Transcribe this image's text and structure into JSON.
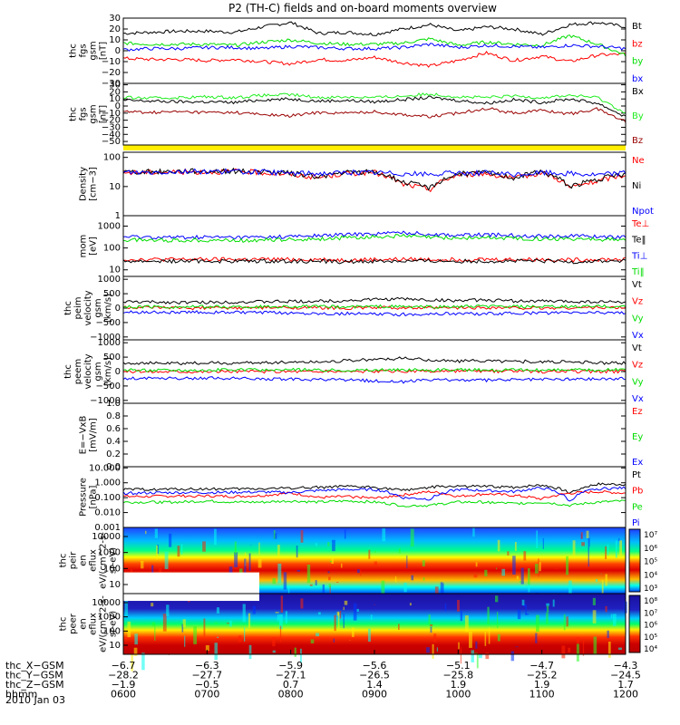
{
  "title": "P2 (TH-C) fields and on-board moments overview",
  "date_label": "2010 Jan 03",
  "colors": {
    "black": "#000000",
    "red": "#ff0000",
    "green": "#00dd00",
    "blue": "#0000ff",
    "darkred": "#990000",
    "yellow": "#ffee00",
    "lime": "#22ee22"
  },
  "chart_data": [
    {
      "type": "line",
      "ylabel": [
        "thc",
        "fgs",
        "gsm",
        "[nT]"
      ],
      "yticks": [
        "30",
        "20",
        "10",
        "0",
        "−10",
        "−20",
        "−30"
      ],
      "tick_values": [
        30,
        20,
        10,
        0,
        -10,
        -20,
        -30
      ],
      "ylim": [
        -30,
        30
      ],
      "series": [
        {
          "name": "Bt",
          "color": "#000000",
          "values": [
            16,
            17,
            18,
            18,
            17,
            22,
            26,
            16,
            17,
            15,
            20,
            24,
            18,
            22,
            20,
            15,
            24,
            26,
            22
          ]
        },
        {
          "name": "bz",
          "color": "#ff0000",
          "values": [
            -7,
            -8,
            -8,
            -9,
            -8,
            -10,
            -12,
            -8,
            -9,
            -6,
            -11,
            -14,
            -9,
            -2,
            -9,
            -5,
            -10,
            -4,
            -3
          ]
        },
        {
          "name": "by",
          "color": "#00dd00",
          "values": [
            7,
            6,
            6,
            6,
            5,
            8,
            10,
            7,
            6,
            6,
            7,
            11,
            5,
            8,
            6,
            5,
            14,
            6,
            -4
          ]
        },
        {
          "name": "bx",
          "color": "#0000ff",
          "values": [
            1,
            2,
            2,
            3,
            3,
            2,
            4,
            3,
            2,
            2,
            3,
            6,
            3,
            5,
            4,
            3,
            5,
            4,
            2
          ]
        }
      ]
    },
    {
      "type": "line",
      "ylabel": [
        "thc",
        "fgs",
        "gsm",
        "[nT]"
      ],
      "yticks": [
        "30",
        "20",
        "10",
        "0",
        "−10",
        "−20",
        "−30",
        "−40",
        "−50"
      ],
      "tick_values": [
        30,
        20,
        10,
        0,
        -10,
        -20,
        -30,
        -40,
        -50
      ],
      "ylim": [
        -55,
        32
      ],
      "series": [
        {
          "name": "Bx",
          "color": "#000000",
          "values": [
            8,
            7,
            6,
            6,
            5,
            9,
            10,
            7,
            8,
            6,
            9,
            12,
            8,
            4,
            9,
            5,
            10,
            4,
            -15
          ]
        },
        {
          "name": "By",
          "color": "#22ee22",
          "values": [
            12,
            11,
            12,
            13,
            12,
            15,
            16,
            12,
            13,
            12,
            14,
            17,
            13,
            12,
            14,
            12,
            15,
            12,
            -10
          ]
        },
        {
          "name": "Bz",
          "color": "#990000",
          "values": [
            -8,
            -9,
            -8,
            -9,
            -9,
            -12,
            -14,
            -9,
            -10,
            -8,
            -12,
            -15,
            -10,
            -3,
            -10,
            -6,
            -11,
            -4,
            -22
          ]
        }
      ]
    },
    {
      "type": "line",
      "log": true,
      "ylabel": [
        "Density",
        "[cm−3]"
      ],
      "yticks": [
        "100",
        "10",
        "1"
      ],
      "tick_values": [
        100,
        10,
        1
      ],
      "ylim": [
        1,
        150
      ],
      "series": [
        {
          "name": "Ne",
          "color": "#ff0000",
          "values": [
            30,
            31,
            32,
            32,
            33,
            30,
            26,
            20,
            28,
            30,
            12,
            8,
            25,
            28,
            18,
            30,
            9,
            15,
            25
          ]
        },
        {
          "name": "Ni",
          "color": "#000000",
          "values": [
            32,
            32,
            34,
            34,
            34,
            32,
            28,
            22,
            30,
            32,
            14,
            9,
            27,
            30,
            20,
            32,
            10,
            17,
            27
          ]
        },
        {
          "name": "Npot",
          "color": "#0000ff",
          "values": [
            31,
            31,
            33,
            33,
            33,
            31,
            29,
            28,
            30,
            30,
            28,
            26,
            29,
            30,
            25,
            30,
            28,
            25,
            30
          ]
        }
      ]
    },
    {
      "type": "line",
      "log": true,
      "ylabel": [
        "mom",
        "[eV]"
      ],
      "yticks": [
        "1000",
        "100",
        "10"
      ],
      "tick_values": [
        1000,
        100,
        10
      ],
      "ylim": [
        5,
        3000
      ],
      "series": [
        {
          "name": "Te⊥",
          "color": "#ff0000",
          "values": [
            30,
            30,
            30,
            30,
            30,
            30,
            30,
            30,
            28,
            30,
            30,
            30,
            30,
            30,
            30,
            30,
            28,
            30,
            30
          ]
        },
        {
          "name": "Te‖",
          "color": "#000000",
          "values": [
            25,
            25,
            25,
            25,
            25,
            25,
            25,
            25,
            23,
            25,
            25,
            25,
            25,
            25,
            25,
            25,
            23,
            25,
            25
          ]
        },
        {
          "name": "Ti⊥",
          "color": "#0000ff",
          "values": [
            320,
            310,
            300,
            310,
            300,
            310,
            330,
            360,
            400,
            450,
            500,
            420,
            380,
            400,
            380,
            350,
            360,
            330,
            320
          ]
        },
        {
          "name": "Ti‖",
          "color": "#00dd00",
          "values": [
            230,
            230,
            220,
            230,
            220,
            230,
            240,
            260,
            290,
            320,
            350,
            300,
            280,
            290,
            280,
            260,
            270,
            250,
            240
          ]
        }
      ]
    },
    {
      "type": "line",
      "ylabel": [
        "thc",
        "peim",
        "velocity",
        "gsm",
        "[km/s]"
      ],
      "yticks": [
        "1000",
        "500",
        "0",
        "−500",
        "−1000"
      ],
      "tick_values": [
        1000,
        500,
        0,
        -500,
        -1000
      ],
      "ylim": [
        -1100,
        1100
      ],
      "series": [
        {
          "name": "Vt",
          "color": "#000000",
          "values": [
            220,
            210,
            200,
            200,
            210,
            220,
            230,
            240,
            260,
            300,
            320,
            280,
            260,
            280,
            250,
            240,
            230,
            220,
            210
          ]
        },
        {
          "name": "Vz",
          "color": "#ff0000",
          "values": [
            20,
            10,
            0,
            10,
            0,
            10,
            20,
            10,
            0,
            20,
            10,
            0,
            10,
            20,
            10,
            0,
            10,
            20,
            10
          ]
        },
        {
          "name": "Vy",
          "color": "#00dd00",
          "values": [
            40,
            50,
            40,
            50,
            40,
            50,
            60,
            50,
            40,
            60,
            50,
            40,
            50,
            60,
            50,
            40,
            50,
            60,
            50
          ]
        },
        {
          "name": "Vx",
          "color": "#0000ff",
          "values": [
            -150,
            -140,
            -150,
            -140,
            -150,
            -160,
            -170,
            -180,
            -190,
            -210,
            -220,
            -200,
            -190,
            -200,
            -180,
            -170,
            -160,
            -150,
            -150
          ]
        }
      ]
    },
    {
      "type": "line",
      "ylabel": [
        "thc",
        "peem",
        "velocity",
        "gsm",
        "[km/s]"
      ],
      "yticks": [
        "1000",
        "500",
        "0",
        "−500",
        "−1000"
      ],
      "tick_values": [
        1000,
        500,
        0,
        -500,
        -1000
      ],
      "ylim": [
        -1100,
        1100
      ],
      "series": [
        {
          "name": "Vt",
          "color": "#000000",
          "values": [
            300,
            290,
            280,
            300,
            290,
            310,
            330,
            340,
            380,
            420,
            460,
            400,
            360,
            380,
            350,
            340,
            330,
            300,
            290
          ]
        },
        {
          "name": "Vz",
          "color": "#ff0000",
          "values": [
            10,
            0,
            10,
            0,
            10,
            0,
            10,
            0,
            10,
            0,
            10,
            0,
            10,
            0,
            10,
            0,
            10,
            0,
            10
          ]
        },
        {
          "name": "Vy",
          "color": "#00dd00",
          "values": [
            60,
            50,
            60,
            50,
            60,
            50,
            60,
            50,
            60,
            50,
            60,
            50,
            60,
            50,
            60,
            50,
            60,
            50,
            60
          ]
        },
        {
          "name": "Vx",
          "color": "#0000ff",
          "values": [
            -240,
            -230,
            -240,
            -230,
            -240,
            -250,
            -270,
            -280,
            -300,
            -320,
            -350,
            -300,
            -290,
            -300,
            -280,
            -270,
            -260,
            -250,
            -240
          ]
        }
      ]
    },
    {
      "type": "line",
      "ylabel": [
        "E=−VxB",
        "[mV/m]"
      ],
      "yticks": [
        "1.0",
        "0.8",
        "0.6",
        "0.4",
        "0.2",
        "0.0"
      ],
      "tick_values": [
        1.0,
        0.8,
        0.6,
        0.4,
        0.2,
        0.0
      ],
      "ylim": [
        0,
        1
      ],
      "series": [
        {
          "name": "Ez",
          "color": "#ff0000",
          "values": []
        },
        {
          "name": "Ey",
          "color": "#00dd00",
          "values": []
        },
        {
          "name": "Ex",
          "color": "#0000ff",
          "values": []
        }
      ]
    },
    {
      "type": "line",
      "log": true,
      "ylabel": [
        "Pressure",
        "[nPa]"
      ],
      "yticks": [
        "10.000",
        "1.000",
        "0.100",
        "0.010",
        "0.001"
      ],
      "tick_values": [
        10,
        1,
        0.1,
        0.01,
        0.001
      ],
      "ylim": [
        0.001,
        12
      ],
      "series": [
        {
          "name": "Pt",
          "color": "#000000",
          "values": [
            0.35,
            0.36,
            0.37,
            0.38,
            0.38,
            0.4,
            0.45,
            0.5,
            0.55,
            0.5,
            0.3,
            0.5,
            0.6,
            0.55,
            0.5,
            0.7,
            0.2,
            0.8,
            0.8
          ]
        },
        {
          "name": "Pb",
          "color": "#ff0000",
          "values": [
            0.12,
            0.12,
            0.13,
            0.13,
            0.12,
            0.14,
            0.2,
            0.1,
            0.12,
            0.09,
            0.15,
            0.25,
            0.12,
            0.18,
            0.14,
            0.08,
            0.2,
            0.25,
            0.2
          ]
        },
        {
          "name": "Pe",
          "color": "#00dd00",
          "values": [
            0.05,
            0.05,
            0.05,
            0.06,
            0.05,
            0.05,
            0.06,
            0.05,
            0.06,
            0.05,
            0.03,
            0.03,
            0.05,
            0.05,
            0.04,
            0.05,
            0.03,
            0.05,
            0.06
          ]
        },
        {
          "name": "Pi",
          "color": "#0000ff",
          "values": [
            0.2,
            0.21,
            0.22,
            0.22,
            0.23,
            0.24,
            0.22,
            0.3,
            0.35,
            0.35,
            0.1,
            0.08,
            0.35,
            0.3,
            0.25,
            0.45,
            0.05,
            0.4,
            0.45
          ]
        }
      ]
    },
    {
      "type": "heatmap",
      "ylabel": [
        "thc",
        "peir",
        "en",
        "eflux",
        "eV/(cm^2-s-",
        "sr-eV)"
      ],
      "yticks": [
        "10000",
        "1000",
        "100",
        "10"
      ],
      "tick_values": [
        10000,
        1000,
        100,
        10
      ],
      "colorbar_ticks": [
        "10⁷",
        "10⁶",
        "10⁵",
        "10⁴",
        "10³"
      ]
    },
    {
      "type": "heatmap",
      "ylabel": [
        "thc",
        "peer",
        "en",
        "eflux",
        "eV/(cm^2-s-",
        "sr-eV)"
      ],
      "yticks": [
        "10000",
        "1000",
        "100",
        "10"
      ],
      "tick_values": [
        10000,
        1000,
        100,
        10
      ],
      "colorbar_ticks": [
        "10⁸",
        "10⁷",
        "10⁶",
        "10⁵",
        "10⁴"
      ]
    }
  ],
  "x_axis": {
    "rows": [
      {
        "label": "thc_X−GSM",
        "values": [
          "−6.7",
          "−6.3",
          "−5.9",
          "−5.6",
          "−5.1",
          "−4.7",
          "−4.3"
        ]
      },
      {
        "label": "thc_Y−GSM",
        "values": [
          "−28.2",
          "−27.7",
          "−27.1",
          "−26.5",
          "−25.8",
          "−25.2",
          "−24.5"
        ]
      },
      {
        "label": "thc_Z−GSM",
        "values": [
          "−1.9",
          "−0.5",
          "0.7",
          "1.4",
          "1.9",
          "1.9",
          "1.7"
        ]
      },
      {
        "label": "hhmm",
        "values": [
          "0600",
          "0700",
          "0800",
          "0900",
          "1000",
          "1100",
          "1200"
        ]
      }
    ],
    "time_positions": [
      0,
      1,
      2,
      3,
      4,
      5,
      6
    ]
  }
}
